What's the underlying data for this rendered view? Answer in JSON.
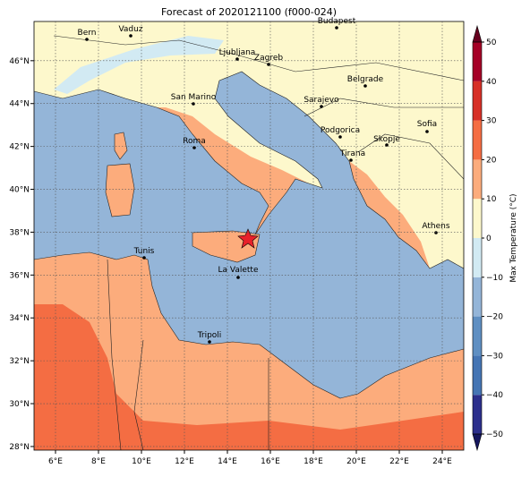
{
  "title": "Forecast of 2020121100 (f000-024)",
  "map": {
    "lon_lim": [
      5,
      25
    ],
    "lat_lim": [
      27.83,
      47.83
    ],
    "lon_ticks": [
      {
        "value": 6,
        "label": "6°E"
      },
      {
        "value": 8,
        "label": "8°E"
      },
      {
        "value": 10,
        "label": "10°E"
      },
      {
        "value": 12,
        "label": "12°E"
      },
      {
        "value": 14,
        "label": "14°E"
      },
      {
        "value": 16,
        "label": "16°E"
      },
      {
        "value": 18,
        "label": "18°E"
      },
      {
        "value": 20,
        "label": "20°E"
      },
      {
        "value": 22,
        "label": "22°E"
      },
      {
        "value": 24,
        "label": "24°E"
      }
    ],
    "lat_ticks": [
      {
        "value": 28,
        "label": "28°N"
      },
      {
        "value": 30,
        "label": "30°N"
      },
      {
        "value": 32,
        "label": "32°N"
      },
      {
        "value": 34,
        "label": "34°N"
      },
      {
        "value": 36,
        "label": "36°N"
      },
      {
        "value": 38,
        "label": "38°N"
      },
      {
        "value": 40,
        "label": "40°N"
      },
      {
        "value": 42,
        "label": "42°N"
      },
      {
        "value": 44,
        "label": "44°N"
      },
      {
        "value": 46,
        "label": "46°N"
      }
    ],
    "grid": true,
    "cities": [
      "Bern",
      "Vaduz",
      "Ljubljana",
      "Zagreb",
      "Budapest",
      "San Marino",
      "Belgrade",
      "Sarajevo",
      "Sofia",
      "Roma",
      "Podgorica",
      "Skopje",
      "Tirana",
      "Athens",
      "Tunis",
      "La Valette",
      "Tripoli"
    ]
  },
  "colorbar": {
    "label": "Max Temperature (°C)",
    "ticks": [
      {
        "value": -50,
        "label": "−50"
      },
      {
        "value": -40,
        "label": "−40"
      },
      {
        "value": -30,
        "label": "−30"
      },
      {
        "value": -20,
        "label": "−20"
      },
      {
        "value": -10,
        "label": "−10"
      },
      0,
      10,
      20,
      30,
      40,
      50
    ],
    "colors": [
      "#2c2f8c",
      "#4575b4",
      "#5f8fc2",
      "#94b5d8",
      "#d2eaf3",
      "#fdf8cc",
      "#fcac7c",
      "#f46d43",
      "#d73027",
      "#a50026"
    ],
    "extend_colors": [
      "#15165e",
      "#67001f"
    ]
  }
}
